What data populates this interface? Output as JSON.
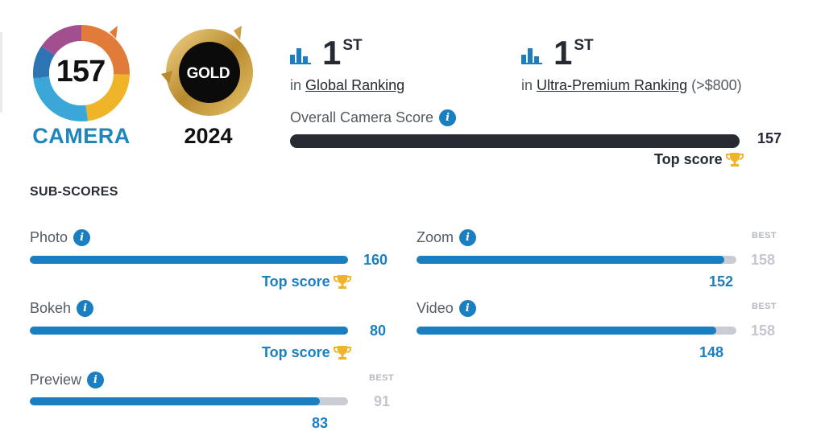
{
  "badges": {
    "camera": {
      "score": "157",
      "label": "CAMERA"
    },
    "gold": {
      "label": "GOLD",
      "year": "2024"
    }
  },
  "rankings": [
    {
      "rank": "1",
      "suffix": "ST",
      "prefix": "in",
      "link": "Global Ranking",
      "extra": ""
    },
    {
      "rank": "1",
      "suffix": "ST",
      "prefix": "in",
      "link": "Ultra-Premium Ranking",
      "extra": "(>$800)"
    }
  ],
  "overall": {
    "label": "Overall Camera Score",
    "value": "157",
    "fill_fraction": 1.0,
    "top_score_label": "Top score"
  },
  "subscores_title": "SUB-SCORES",
  "subscores": [
    {
      "label": "Photo",
      "value": "160",
      "best": "",
      "best_label": "",
      "fraction": 1.0,
      "top_score_label": "Top score"
    },
    {
      "label": "Zoom",
      "value": "152",
      "best": "158",
      "best_label": "BEST",
      "fraction": 0.962,
      "top_score_label": ""
    },
    {
      "label": "Bokeh",
      "value": "80",
      "best": "",
      "best_label": "",
      "fraction": 1.0,
      "top_score_label": "Top score"
    },
    {
      "label": "Video",
      "value": "148",
      "best": "158",
      "best_label": "BEST",
      "fraction": 0.937,
      "top_score_label": ""
    },
    {
      "label": "Preview",
      "value": "83",
      "best": "91",
      "best_label": "BEST",
      "fraction": 0.912,
      "top_score_label": ""
    }
  ],
  "colors": {
    "accent_blue": "#1a7fc0",
    "dark_bar": "#262b33",
    "track_gray": "#c9ccd3",
    "gold": "#c9a24a",
    "trophy": "#f0b429"
  },
  "icons": {
    "info": "info-icon",
    "ranking": "bar-chart-icon",
    "trophy": "trophy-icon"
  }
}
